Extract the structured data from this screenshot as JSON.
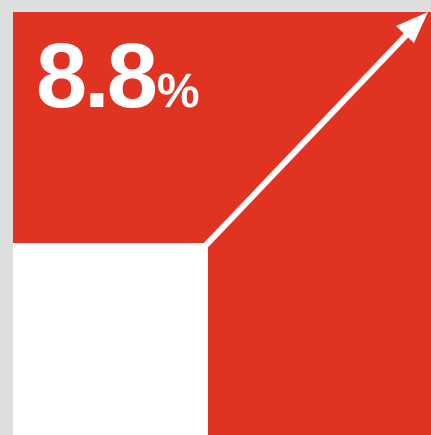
{
  "stat": {
    "value": "8.8",
    "unit": "%"
  },
  "colors": {
    "accent": "#e03322",
    "background": "#dedede",
    "foreground": "#ffffff"
  },
  "icons": {
    "trend": "arrow-up-right-icon"
  }
}
